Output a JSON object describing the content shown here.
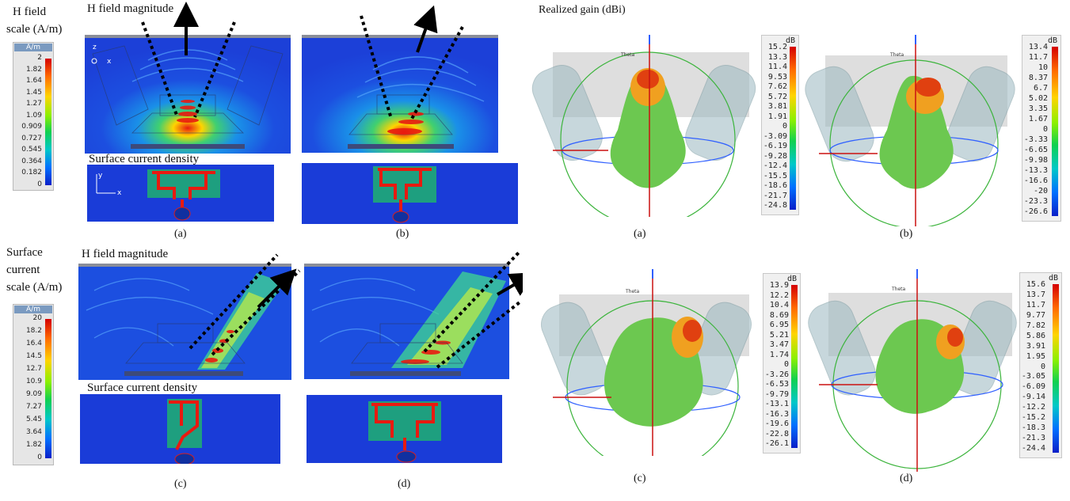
{
  "hfield_scale": {
    "label_lines": [
      "H field",
      "scale (A/m)"
    ],
    "header": "A/m",
    "ticks": [
      "2",
      "1.82",
      "1.64",
      "1.45",
      "1.27",
      "1.09",
      "0.909",
      "0.727",
      "0.545",
      "0.364",
      "0.182",
      "0"
    ]
  },
  "current_scale": {
    "label_lines": [
      "Surface",
      "current",
      "scale (A/m)"
    ],
    "header": "A/m",
    "ticks": [
      "20",
      "18.2",
      "16.4",
      "14.5",
      "12.7",
      "10.9",
      "9.09",
      "7.27",
      "5.45",
      "3.64",
      "1.82",
      "0"
    ]
  },
  "section_labels": {
    "h_field": "H field magnitude",
    "surface_current": "Surface current density",
    "gain": "Realized gain (dBi)"
  },
  "axis_labels": {
    "z": "z",
    "y": "y",
    "x": "x",
    "theta": "Theta"
  },
  "captions": {
    "a": "(a)",
    "b": "(b)",
    "c": "(c)",
    "d": "(d)"
  },
  "gain_scales": [
    {
      "unit": "dB",
      "ticks": [
        "15.2",
        "13.3",
        "11.4",
        "9.53",
        "7.62",
        "5.72",
        "3.81",
        "1.91",
        "0",
        "-3.09",
        "-6.19",
        "-9.28",
        "-12.4",
        "-15.5",
        "-18.6",
        "-21.7",
        "-24.8"
      ]
    },
    {
      "unit": "dB",
      "ticks": [
        "13.4",
        "11.7",
        "10",
        "8.37",
        "6.7",
        "5.02",
        "3.35",
        "1.67",
        "0",
        "-3.33",
        "-6.65",
        "-9.98",
        "-13.3",
        "-16.6",
        "-20",
        "-23.3",
        "-26.6"
      ]
    },
    {
      "unit": "dB",
      "ticks": [
        "13.9",
        "12.2",
        "10.4",
        "8.69",
        "6.95",
        "5.21",
        "3.47",
        "1.74",
        "0",
        "-3.26",
        "-6.53",
        "-9.79",
        "-13.1",
        "-16.3",
        "-19.6",
        "-22.8",
        "-26.1"
      ]
    },
    {
      "unit": "dB",
      "ticks": [
        "15.6",
        "13.7",
        "11.7",
        "9.77",
        "7.82",
        "5.86",
        "3.91",
        "1.95",
        "0",
        "-3.05",
        "-6.09",
        "-9.14",
        "-12.2",
        "-15.2",
        "-18.3",
        "-21.3",
        "-24.4"
      ]
    }
  ],
  "colors": {
    "field_blue": "#1c4fe0",
    "hot_red": "#e81a10",
    "mesh_green": "#4fd070",
    "pattern_green": "#6cc850",
    "sphere_green": "#3cb43c",
    "axis_blue": "#3060ff",
    "axis_red": "#cc1010"
  }
}
